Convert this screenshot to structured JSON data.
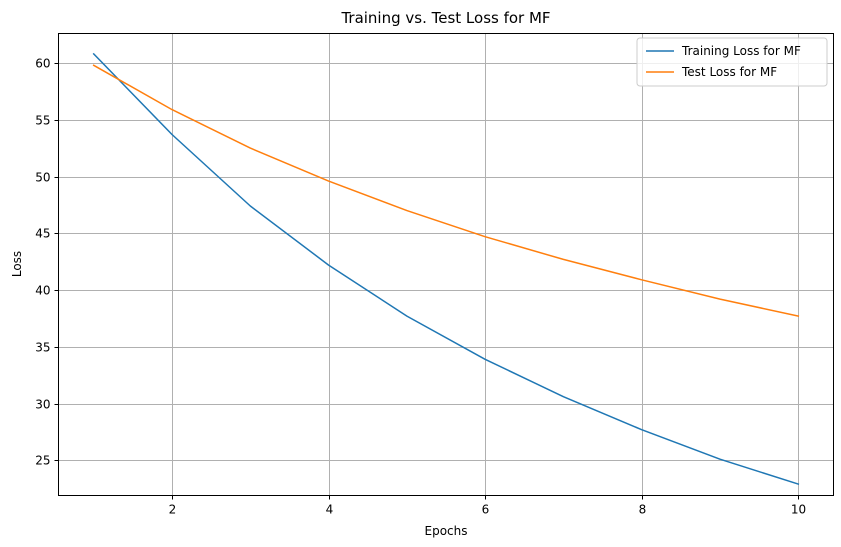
{
  "chart_data": {
    "type": "line",
    "title": "Training vs. Test Loss for MF",
    "xlabel": "Epochs",
    "ylabel": "Loss",
    "xlim": [
      0.55,
      10.45
    ],
    "ylim": [
      21.9,
      62.6
    ],
    "xticks": [
      2,
      4,
      6,
      8,
      10
    ],
    "yticks": [
      25,
      30,
      35,
      40,
      45,
      50,
      55,
      60
    ],
    "grid": true,
    "legend_position": "top-right",
    "x": [
      1,
      2,
      3,
      4,
      5,
      6,
      7,
      8,
      9,
      10
    ],
    "series": [
      {
        "name": "Training Loss for MF",
        "color": "#1f77b4",
        "values": [
          60.8,
          53.7,
          47.4,
          42.2,
          37.7,
          33.9,
          30.6,
          27.7,
          25.1,
          22.9
        ]
      },
      {
        "name": "Test Loss for MF",
        "color": "#ff7f0e",
        "values": [
          59.8,
          55.9,
          52.5,
          49.6,
          47.0,
          44.7,
          42.7,
          40.9,
          39.2,
          37.7
        ]
      }
    ]
  }
}
